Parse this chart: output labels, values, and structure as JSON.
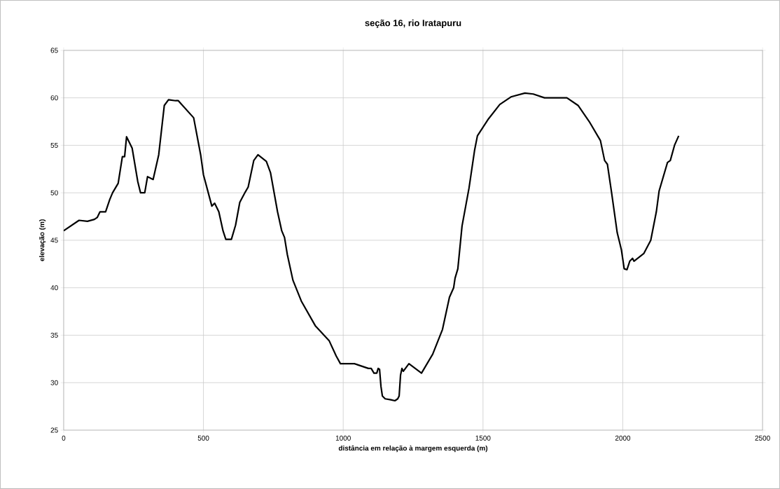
{
  "chart_data": {
    "type": "line",
    "title": "seção 16, rio Iratapuru",
    "xlabel": "distância em relação à margem esquerda (m)",
    "ylabel": "elevação (m)",
    "x": [
      0,
      55,
      85,
      110,
      120,
      130,
      150,
      165,
      175,
      195,
      210,
      218,
      225,
      245,
      265,
      275,
      290,
      300,
      320,
      340,
      360,
      375,
      400,
      410,
      465,
      490,
      500,
      530,
      540,
      555,
      570,
      580,
      600,
      615,
      630,
      650,
      660,
      680,
      695,
      725,
      740,
      765,
      780,
      790,
      800,
      820,
      850,
      900,
      950,
      975,
      990,
      1040,
      1090,
      1100,
      1110,
      1120,
      1125,
      1130,
      1135,
      1140,
      1150,
      1170,
      1185,
      1195,
      1200,
      1205,
      1210,
      1215,
      1235,
      1280,
      1320,
      1355,
      1380,
      1395,
      1400,
      1410,
      1425,
      1450,
      1470,
      1480,
      1520,
      1560,
      1600,
      1650,
      1680,
      1720,
      1800,
      1840,
      1880,
      1920,
      1935,
      1945,
      1960,
      1980,
      1995,
      2005,
      2015,
      2025,
      2035,
      2040,
      2075,
      2100,
      2120,
      2130,
      2160,
      2170,
      2185,
      2200
    ],
    "series": [
      {
        "color": "#000000",
        "values": [
          46,
          47.1,
          47,
          47.2,
          47.4,
          48,
          48,
          49.3,
          50,
          51,
          53.8,
          53.8,
          55.9,
          54.7,
          51.2,
          50,
          50,
          51.7,
          51.4,
          54,
          59.2,
          59.8,
          59.7,
          59.7,
          57.9,
          54,
          51.9,
          48.6,
          48.9,
          48,
          46,
          45.1,
          45.1,
          46.6,
          49,
          50.1,
          50.6,
          53.4,
          54,
          53.3,
          52.1,
          48,
          46,
          45.3,
          43.5,
          40.8,
          38.6,
          36,
          34.4,
          32.8,
          32,
          32,
          31.5,
          31.5,
          31,
          31,
          31.5,
          31.4,
          29.6,
          28.6,
          28.3,
          28.2,
          28.1,
          28.3,
          28.6,
          30.8,
          31.5,
          31.2,
          32,
          31,
          33,
          35.6,
          39,
          40,
          41,
          42,
          46.5,
          50.5,
          54.5,
          56,
          57.8,
          59.3,
          60.1,
          60.5,
          60.4,
          60,
          60,
          59.2,
          57.5,
          55.5,
          53.4,
          53,
          50,
          45.8,
          44,
          42,
          41.9,
          42.8,
          43.1,
          42.8,
          43.6,
          45,
          48,
          50.2,
          53.2,
          53.4,
          55,
          56
        ]
      }
    ],
    "xlim": [
      0,
      2500
    ],
    "xticks": [
      0,
      500,
      1000,
      1500,
      2000,
      2500
    ],
    "ylim": [
      25,
      65
    ],
    "yticks": [
      25,
      30,
      35,
      40,
      45,
      50,
      55,
      60,
      65
    ],
    "grid": true,
    "marker": "none",
    "line_style": "solid"
  }
}
